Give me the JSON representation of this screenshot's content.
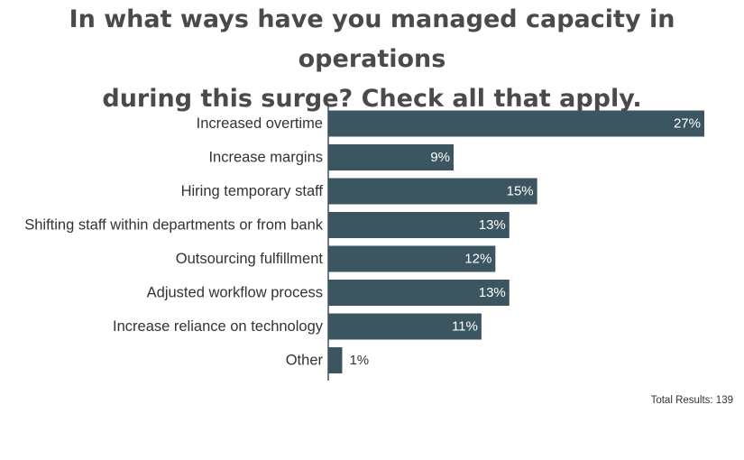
{
  "chart_data": {
    "type": "bar",
    "orientation": "horizontal",
    "title": "In what ways have you managed capacity in operations during this surge? Check all that apply.",
    "title_lines": [
      "In what ways have you managed capacity in operations",
      "during this surge? Check all that apply."
    ],
    "categories": [
      "Increased overtime",
      "Increase margins",
      "Hiring temporary staff",
      "Shifting staff within departments or from bank",
      "Outsourcing fulfillment",
      "Adjusted workflow process",
      "Increase reliance on technology",
      "Other"
    ],
    "values": [
      27,
      9,
      15,
      13,
      12,
      13,
      11,
      1
    ],
    "value_labels": [
      "27%",
      "9%",
      "15%",
      "13%",
      "12%",
      "13%",
      "11%",
      "1%"
    ],
    "unit": "%",
    "xlim": [
      0,
      27
    ],
    "bar_color": "#3b5561",
    "grid": false,
    "legend": "none"
  },
  "footer": {
    "total_results": "Total Results: 139"
  }
}
